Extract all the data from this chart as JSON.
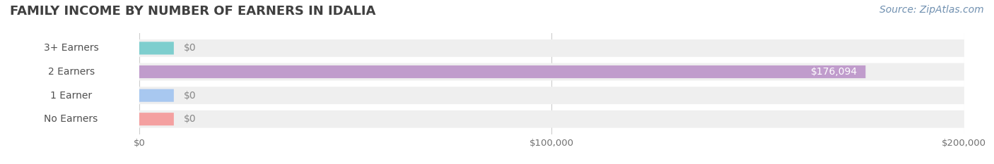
{
  "title": "FAMILY INCOME BY NUMBER OF EARNERS IN IDALIA",
  "source": "Source: ZipAtlas.com",
  "categories": [
    "No Earners",
    "1 Earner",
    "2 Earners",
    "3+ Earners"
  ],
  "values": [
    0,
    0,
    176094,
    0
  ],
  "bar_colors": [
    "#f4a0a0",
    "#a8c8f0",
    "#c09ccc",
    "#7ecece"
  ],
  "xlim": [
    0,
    200000
  ],
  "xticks": [
    0,
    100000,
    200000
  ],
  "xtick_labels": [
    "$0",
    "$100,000",
    "$200,000"
  ],
  "value_label_color": "#ffffff",
  "zero_label_color": "#888888",
  "title_color": "#404040",
  "source_color": "#7090b0",
  "label_fontsize": 10,
  "title_fontsize": 13,
  "source_fontsize": 10
}
